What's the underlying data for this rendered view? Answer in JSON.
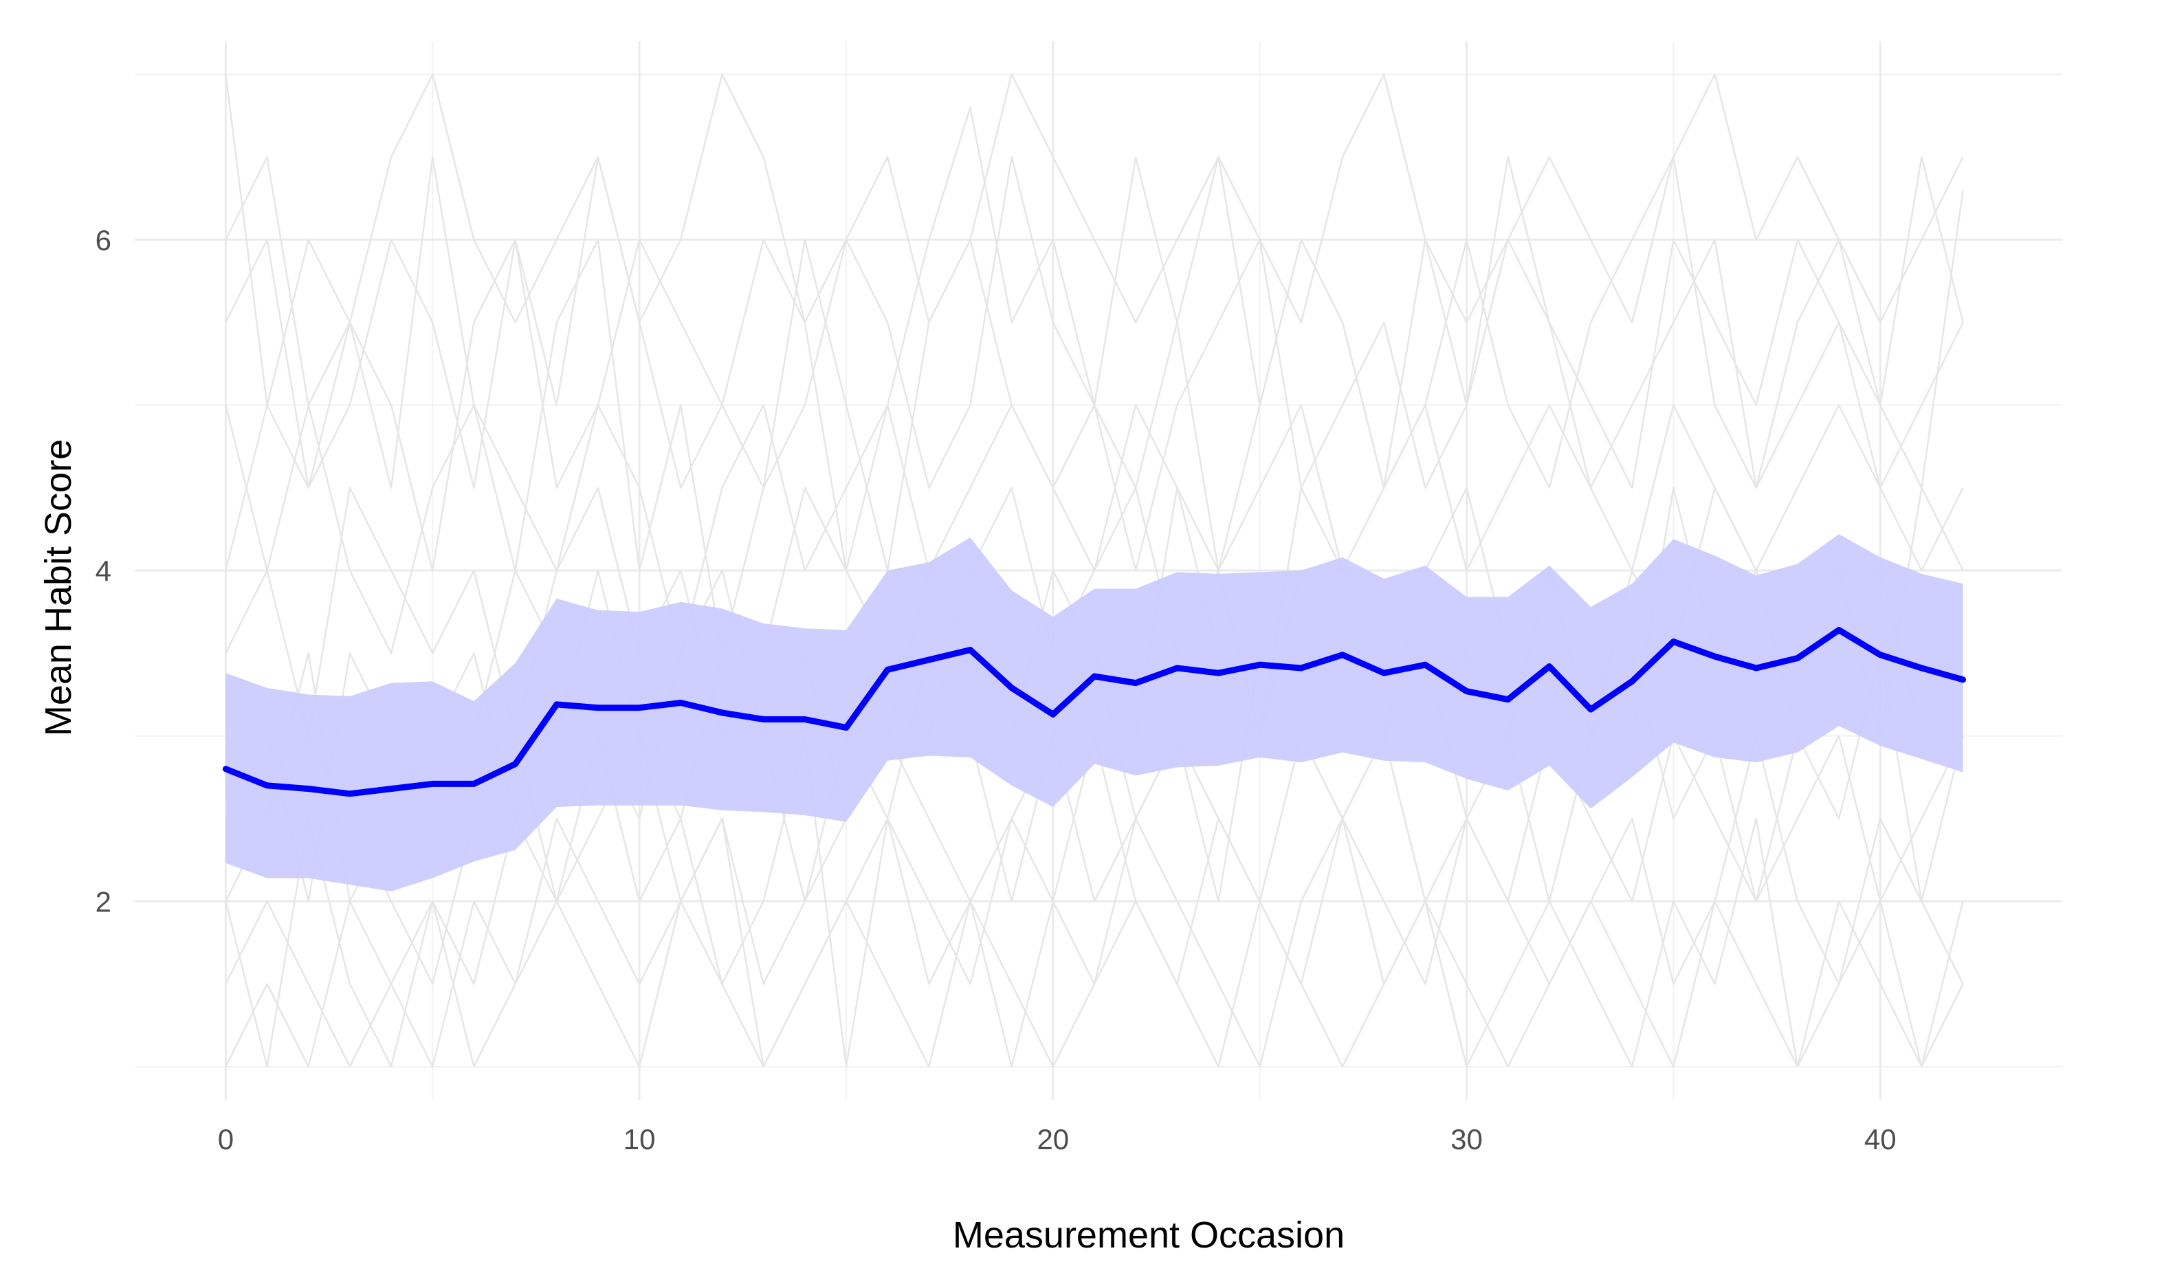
{
  "chart_data": {
    "type": "line",
    "title": "",
    "xlabel": "Measurement Occasion",
    "ylabel": "Mean Habit Score",
    "xlim": [
      -2.2,
      44.4
    ],
    "ylim": [
      0.8,
      7.2
    ],
    "x_ticks": [
      0,
      10,
      20,
      30,
      40
    ],
    "y_ticks": [
      2,
      4,
      6
    ],
    "x_tick_labels": [
      "0",
      "10",
      "20",
      "30",
      "40"
    ],
    "y_tick_labels": [
      "2",
      "4",
      "6"
    ],
    "grid": true,
    "legend": "none",
    "mean_color": "#0000ff",
    "ribbon_color": "#ccccff",
    "individual_color": "#e6e6e6",
    "x": [
      0,
      1,
      2,
      3,
      4,
      5,
      6,
      7,
      8,
      9,
      10,
      11,
      12,
      13,
      14,
      15,
      16,
      17,
      18,
      19,
      20,
      21,
      22,
      23,
      24,
      25,
      26,
      27,
      28,
      29,
      30,
      31,
      32,
      33,
      34,
      35,
      36,
      37,
      38,
      39,
      40,
      41,
      42
    ],
    "series": [
      {
        "values": [
          2.8,
          2.7,
          2.68,
          2.65,
          2.68,
          2.71,
          2.71,
          2.83,
          3.19,
          3.17,
          3.17,
          3.2,
          3.14,
          3.1,
          3.1,
          3.05,
          3.4,
          3.46,
          3.52,
          3.29,
          3.13,
          3.36,
          3.32,
          3.41,
          3.38,
          3.43,
          3.41,
          3.49,
          3.38,
          3.43,
          3.27,
          3.22,
          3.42,
          3.16,
          3.33,
          3.57,
          3.48,
          3.41,
          3.47,
          3.64,
          3.49,
          3.41,
          3.34
        ],
        "lower": [
          2.23,
          2.14,
          2.14,
          2.1,
          2.06,
          2.14,
          2.24,
          2.31,
          2.57,
          2.58,
          2.58,
          2.58,
          2.55,
          2.54,
          2.52,
          2.48,
          2.85,
          2.88,
          2.87,
          2.7,
          2.57,
          2.83,
          2.76,
          2.81,
          2.82,
          2.87,
          2.84,
          2.9,
          2.85,
          2.84,
          2.74,
          2.67,
          2.82,
          2.56,
          2.75,
          2.96,
          2.87,
          2.84,
          2.9,
          3.06,
          2.94,
          2.86,
          2.78
        ],
        "upper": [
          3.38,
          3.29,
          3.25,
          3.24,
          3.32,
          3.33,
          3.21,
          3.44,
          3.83,
          3.76,
          3.75,
          3.81,
          3.77,
          3.68,
          3.65,
          3.64,
          4.0,
          4.05,
          4.2,
          3.88,
          3.72,
          3.89,
          3.89,
          3.99,
          3.98,
          3.99,
          4.0,
          4.08,
          3.95,
          4.03,
          3.84,
          3.84,
          4.03,
          3.78,
          3.92,
          4.19,
          4.09,
          3.97,
          4.04,
          4.22,
          4.08,
          3.98,
          3.92
        ]
      }
    ],
    "individual_series": [
      [
        7.0,
        5.0,
        6.0,
        5.5,
        4.5,
        6.5,
        5.0,
        4.0,
        5.5,
        6.0,
        4.0,
        5.0,
        3.5,
        4.5,
        6.0,
        5.0,
        4.0,
        5.5,
        6.0,
        5.0,
        4.5,
        5.0,
        6.5,
        5.5,
        4.0,
        5.0,
        6.0,
        5.5,
        4.5,
        5.0,
        6.0,
        5.0,
        4.5,
        5.5,
        6.0,
        6.5,
        5.0,
        4.5,
        5.5,
        6.0,
        5.0,
        4.5,
        6.3
      ],
      [
        5.5,
        6.0,
        4.5,
        5.0,
        6.0,
        5.5,
        4.5,
        6.0,
        5.0,
        6.5,
        5.5,
        4.5,
        5.0,
        6.0,
        5.5,
        4.0,
        5.0,
        6.0,
        6.8,
        5.5,
        6.0,
        5.0,
        4.5,
        5.5,
        6.5,
        5.0,
        6.0,
        5.5,
        4.5,
        6.0,
        5.0,
        6.5,
        5.5,
        5.0,
        4.5,
        6.0,
        5.5,
        5.0,
        6.0,
        5.5,
        5.0,
        6.5,
        5.5
      ],
      [
        3.0,
        2.5,
        3.5,
        2.0,
        2.5,
        3.0,
        3.5,
        2.5,
        3.0,
        4.0,
        3.0,
        2.5,
        3.5,
        3.0,
        2.0,
        3.0,
        2.5,
        3.5,
        3.0,
        2.0,
        3.0,
        3.5,
        2.5,
        3.0,
        2.0,
        3.5,
        3.0,
        2.5,
        3.0,
        3.5,
        2.5,
        3.0,
        2.0,
        3.0,
        3.5,
        2.5,
        3.0,
        2.0,
        3.0,
        2.5,
        3.5,
        2.0,
        3.0
      ],
      [
        1.0,
        1.5,
        1.0,
        2.0,
        1.5,
        1.0,
        2.0,
        1.5,
        2.5,
        2.0,
        1.5,
        2.0,
        2.5,
        1.0,
        1.5,
        2.0,
        2.5,
        1.5,
        2.0,
        1.0,
        2.0,
        1.5,
        2.5,
        2.0,
        1.5,
        1.0,
        2.0,
        2.5,
        1.5,
        2.0,
        1.0,
        1.5,
        2.0,
        1.5,
        1.0,
        2.0,
        1.5,
        2.5,
        1.0,
        2.0,
        1.5,
        1.0,
        2.0
      ],
      [
        2.0,
        1.0,
        2.5,
        1.5,
        1.0,
        2.0,
        1.5,
        2.5,
        2.0,
        3.0,
        2.0,
        2.5,
        1.5,
        2.0,
        3.0,
        1.0,
        2.5,
        2.0,
        1.5,
        2.5,
        2.0,
        3.0,
        2.0,
        1.5,
        2.5,
        2.0,
        3.0,
        2.5,
        2.0,
        1.5,
        2.5,
        2.0,
        1.5,
        2.0,
        2.5,
        1.5,
        2.0,
        3.0,
        2.0,
        1.5,
        2.5,
        2.0,
        1.5
      ],
      [
        4.0,
        5.0,
        4.5,
        5.5,
        5.0,
        4.0,
        5.5,
        6.0,
        4.5,
        5.0,
        6.0,
        5.5,
        5.0,
        4.5,
        5.0,
        6.0,
        5.5,
        4.5,
        5.0,
        6.5,
        5.5,
        5.0,
        4.0,
        5.0,
        5.5,
        6.0,
        4.5,
        5.0,
        5.5,
        4.5,
        5.0,
        6.0,
        5.5,
        4.5,
        5.0,
        5.5,
        6.0,
        4.5,
        5.0,
        5.5,
        4.5,
        5.0,
        5.5
      ],
      [
        2.5,
        3.0,
        2.0,
        3.5,
        3.0,
        2.5,
        3.0,
        4.0,
        3.5,
        3.0,
        2.5,
        3.5,
        4.0,
        3.0,
        3.5,
        2.5,
        3.0,
        4.0,
        3.5,
        3.0,
        4.0,
        3.5,
        3.0,
        4.5,
        3.5,
        3.0,
        4.0,
        3.5,
        3.0,
        4.0,
        3.5,
        3.0,
        4.0,
        3.5,
        3.0,
        4.5,
        3.5,
        4.0,
        3.0,
        3.5,
        4.0,
        3.0,
        3.5
      ],
      [
        1.5,
        2.0,
        1.5,
        1.0,
        1.5,
        2.0,
        1.0,
        1.5,
        2.0,
        1.5,
        1.0,
        2.0,
        1.5,
        1.0,
        1.5,
        2.0,
        1.5,
        1.0,
        2.0,
        1.5,
        1.0,
        1.5,
        2.0,
        1.5,
        1.0,
        2.0,
        1.5,
        1.0,
        1.5,
        2.0,
        1.5,
        1.0,
        1.5,
        2.0,
        1.5,
        1.0,
        2.0,
        1.5,
        1.0,
        1.5,
        2.0,
        1.0,
        1.5
      ],
      [
        6.0,
        6.5,
        5.0,
        5.5,
        6.5,
        7.0,
        6.0,
        5.5,
        6.0,
        6.5,
        5.5,
        6.0,
        7.0,
        6.5,
        5.5,
        6.0,
        6.5,
        5.5,
        6.0,
        7.0,
        6.5,
        6.0,
        5.5,
        6.0,
        6.5,
        6.0,
        5.5,
        6.5,
        7.0,
        6.0,
        5.5,
        6.0,
        6.5,
        6.0,
        5.5,
        6.5,
        7.0,
        6.0,
        6.5,
        6.0,
        5.5,
        6.0,
        6.5
      ],
      [
        3.5,
        4.0,
        3.0,
        4.5,
        4.0,
        3.5,
        4.0,
        3.0,
        4.0,
        4.5,
        3.5,
        4.0,
        3.0,
        3.5,
        4.5,
        4.0,
        3.5,
        3.0,
        4.0,
        4.5,
        3.5,
        4.0,
        4.5,
        3.5,
        4.0,
        3.0,
        4.5,
        4.0,
        3.5,
        4.0,
        4.5,
        3.5,
        4.0,
        3.0,
        4.0,
        3.5,
        4.5,
        4.0,
        3.5,
        4.0,
        3.0,
        4.5,
        4.0
      ],
      [
        5.0,
        4.0,
        5.0,
        4.0,
        3.5,
        4.5,
        5.0,
        4.5,
        4.0,
        5.0,
        4.5,
        3.5,
        4.5,
        5.0,
        4.0,
        4.5,
        5.0,
        4.0,
        4.5,
        5.0,
        4.5,
        4.0,
        5.0,
        4.5,
        4.0,
        4.5,
        5.0,
        4.0,
        4.5,
        5.0,
        4.0,
        4.5,
        5.0,
        4.5,
        4.0,
        5.0,
        4.5,
        4.0,
        4.5,
        5.0,
        4.5,
        4.0,
        4.5
      ],
      [
        2.0,
        2.5,
        3.0,
        2.5,
        2.0,
        1.5,
        2.5,
        3.0,
        2.0,
        2.5,
        3.0,
        2.0,
        2.5,
        1.5,
        2.0,
        2.5,
        3.0,
        2.5,
        2.0,
        2.5,
        3.0,
        2.0,
        2.5,
        3.0,
        2.5,
        2.0,
        1.5,
        2.5,
        3.0,
        2.0,
        2.5,
        2.0,
        3.0,
        2.5,
        2.0,
        3.0,
        2.5,
        2.0,
        2.5,
        3.0,
        2.0,
        2.5,
        3.0
      ]
    ]
  }
}
